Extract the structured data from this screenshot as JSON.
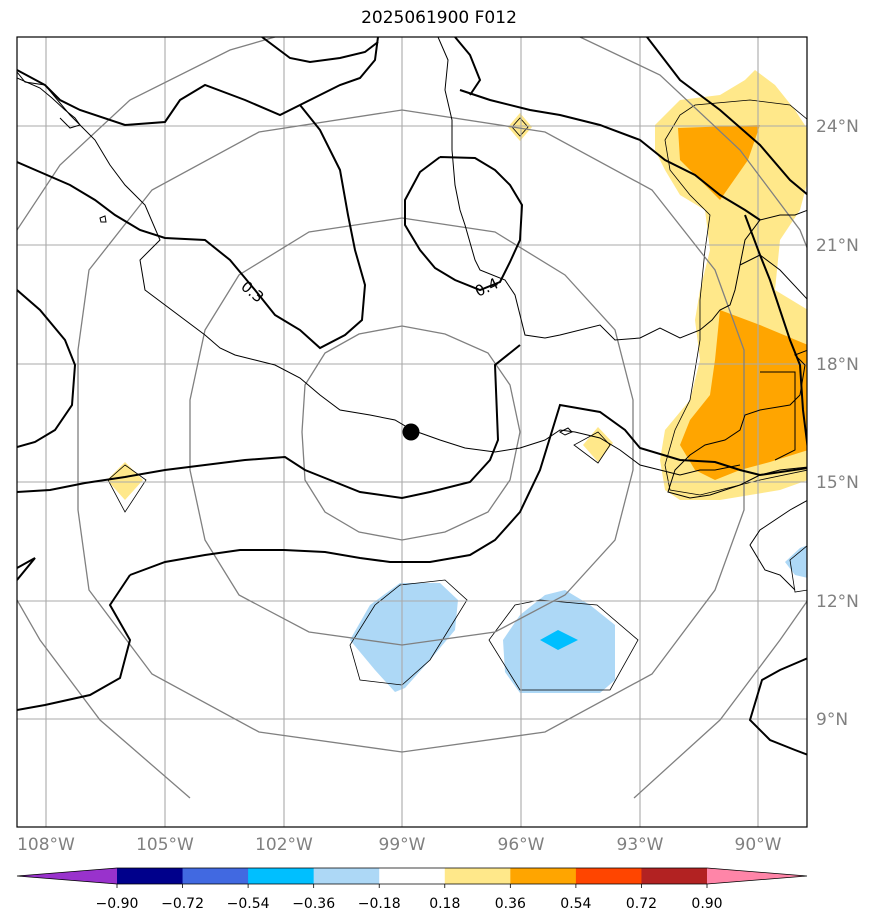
{
  "title": "2025061900 F012",
  "lon_labels": [
    "108°W",
    "105°W",
    "102°W",
    "99°W",
    "96°W",
    "93°W",
    "90°W"
  ],
  "lat_labels": [
    "9°N",
    "12°N",
    "15°N",
    "18°N",
    "21°N",
    "24°N"
  ],
  "contour_labels": [
    "0.3",
    "0.4"
  ],
  "colorbar": {
    "ticks": [
      "−0.90",
      "−0.72",
      "−0.54",
      "−0.36",
      "−0.18",
      "0.18",
      "0.36",
      "0.54",
      "0.72",
      "0.90"
    ],
    "colors": [
      "#9932cc",
      "#00008b",
      "#4169e1",
      "#00bfff",
      "#add8f6",
      "#ffffff",
      "#ffe88a",
      "#ffa500",
      "#ff4500",
      "#b22222",
      "#ff85a8"
    ]
  },
  "storm_center_marker": "black-dot",
  "colors": {
    "positive_light": "#ffe88a",
    "positive_mid": "#ffa500",
    "negative_light": "#add8f6",
    "negative_mid": "#00bfff",
    "grid": "#aaaaaa",
    "range_rings": "#808080",
    "contour": "#000000"
  }
}
